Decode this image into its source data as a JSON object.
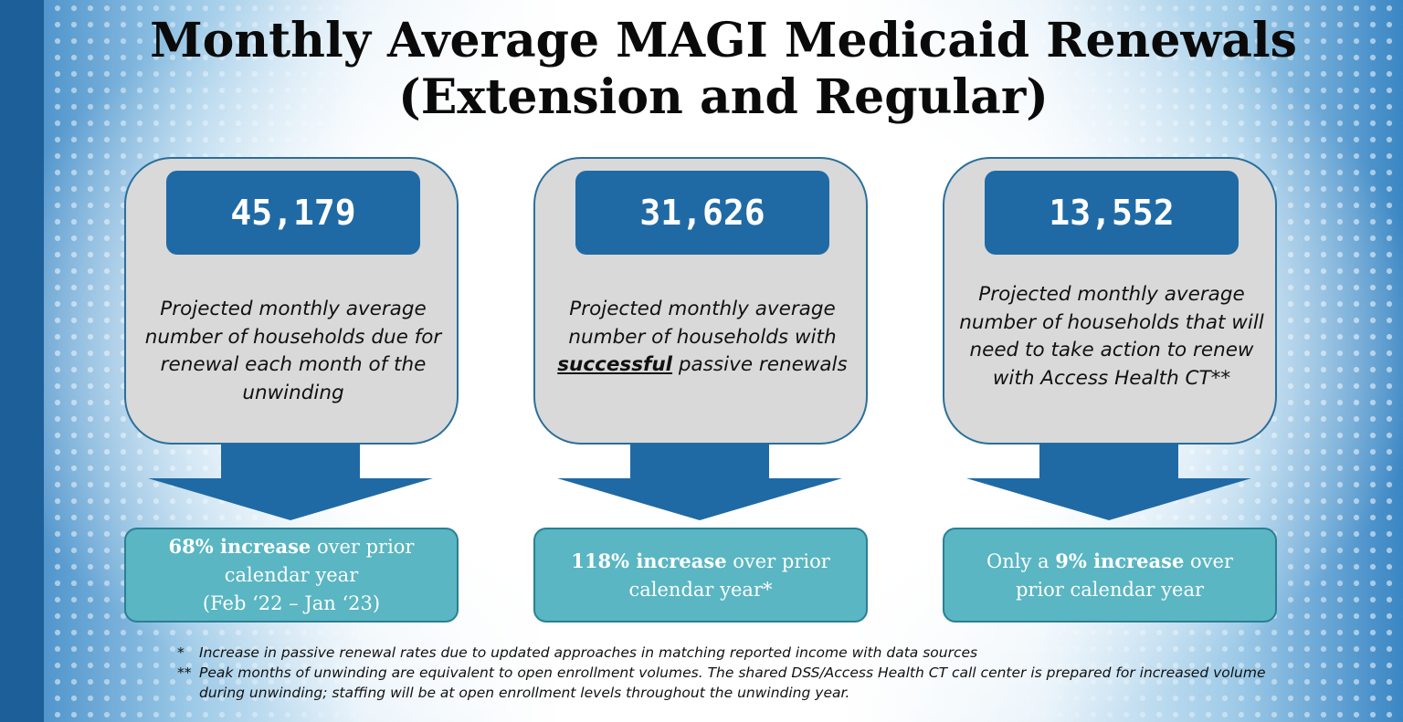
{
  "title": {
    "line1": "Monthly Average MAGI Medicaid Renewals",
    "line2": "(Extension and Regular)"
  },
  "colors": {
    "stat_box": "#1f6aa5",
    "grey_box": "#d9d9d9",
    "teal_box": "#59b6c2",
    "border": "#2a6f9c"
  },
  "cards": [
    {
      "value": "45,179",
      "description_before": "Projected monthly average number of households due for renewal each month of the unwinding",
      "description_emphasis": "",
      "description_after": "",
      "highlight": "68% increase",
      "summary_after": " over prior calendar year",
      "summary_extra": "(Feb ‘22 – Jan ‘23)"
    },
    {
      "value": "31,626",
      "description_before": "Projected monthly average number of households with ",
      "description_emphasis": "successful",
      "description_after": " passive renewals",
      "highlight": "118% increase",
      "summary_after": " over prior calendar year*",
      "summary_extra": ""
    },
    {
      "value": "13,552",
      "description_before": "Projected monthly average number of households that will need to take action to renew with Access Health CT**",
      "description_emphasis": "",
      "description_after": "",
      "summary_before": "Only a ",
      "highlight": "9% increase",
      "summary_after": " over prior calendar year",
      "summary_extra": ""
    }
  ],
  "footnotes": [
    {
      "mark": "*",
      "text": "Increase in passive renewal rates due to updated approaches in matching reported income with data sources"
    },
    {
      "mark": "**",
      "text": "Peak months of unwinding are equivalent to open enrollment volumes. The shared DSS/Access Health CT call center is prepared for increased volume during unwinding; staffing will be at open enrollment levels throughout the unwinding year."
    }
  ]
}
